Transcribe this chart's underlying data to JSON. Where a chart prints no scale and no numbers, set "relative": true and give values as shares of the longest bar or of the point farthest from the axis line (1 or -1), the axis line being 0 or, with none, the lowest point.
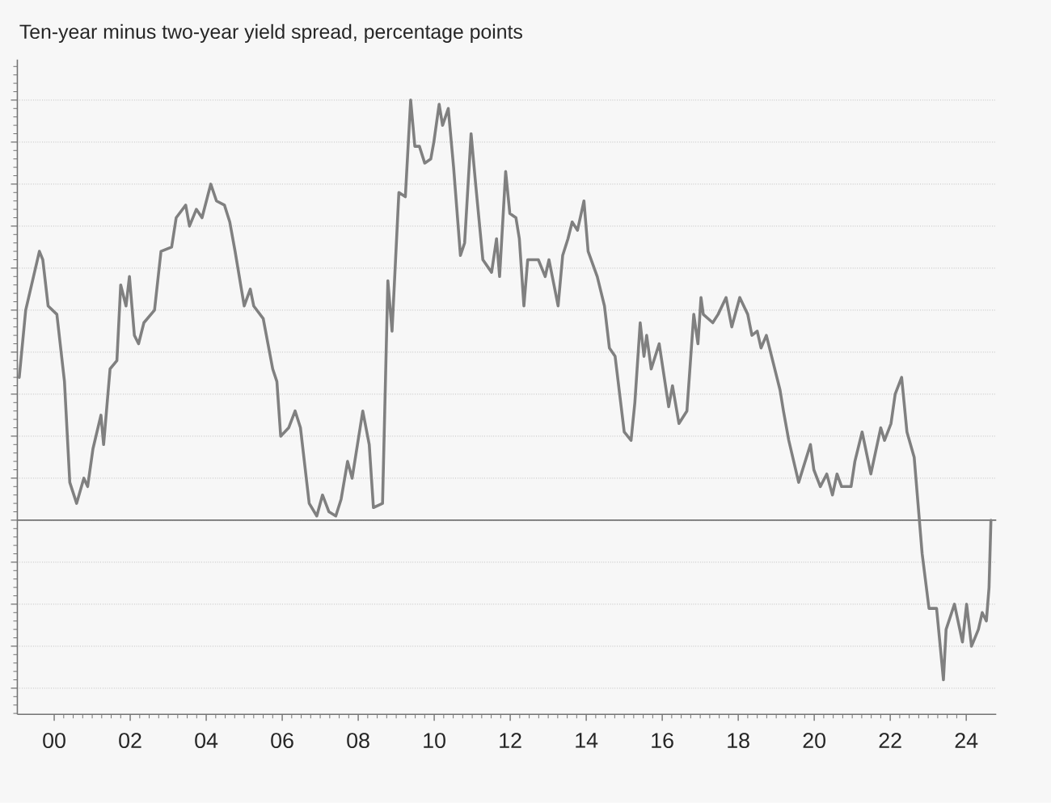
{
  "chart_data": {
    "type": "line",
    "subtitle": "Ten-year minus two-year yield spread, percentage points",
    "relative": true,
    "grid": "y",
    "tick_labels": "x",
    "xlim": [
      1999.03,
      2024.79
    ],
    "xticks": [
      {
        "value": 2000,
        "label": "00"
      },
      {
        "value": 2002,
        "label": "02"
      },
      {
        "value": 2004,
        "label": "04"
      },
      {
        "value": 2006,
        "label": "06"
      },
      {
        "value": 2008,
        "label": "08"
      },
      {
        "value": 2010,
        "label": "10"
      },
      {
        "value": 2012,
        "label": "12"
      },
      {
        "value": 2014,
        "label": "14"
      },
      {
        "value": 2016,
        "label": "16"
      },
      {
        "value": 2018,
        "label": "18"
      },
      {
        "value": 2020,
        "label": "20"
      },
      {
        "value": 2022,
        "label": "22"
      },
      {
        "value": 2024,
        "label": "24"
      }
    ],
    "series": [
      {
        "color": "#808080",
        "x": [
          1999.08,
          1999.25,
          1999.61,
          1999.7,
          1999.84,
          2000.07,
          2000.27,
          2000.41,
          2000.59,
          2000.78,
          2000.88,
          2001.02,
          2001.23,
          2001.3,
          2001.47,
          2001.65,
          2001.75,
          2001.89,
          2001.98,
          2002.11,
          2002.22,
          2002.36,
          2002.64,
          2002.81,
          2003.09,
          2003.21,
          2003.46,
          2003.56,
          2003.74,
          2003.89,
          2004.12,
          2004.27,
          2004.48,
          2004.62,
          2004.76,
          2005.0,
          2005.16,
          2005.25,
          2005.5,
          2005.75,
          2005.86,
          2005.96,
          2006.17,
          2006.34,
          2006.48,
          2006.71,
          2006.91,
          2007.06,
          2007.23,
          2007.41,
          2007.55,
          2007.72,
          2007.84,
          2008.12,
          2008.29,
          2008.4,
          2008.64,
          2008.78,
          2008.89,
          2009.07,
          2009.24,
          2009.38,
          2009.49,
          2009.61,
          2009.75,
          2009.91,
          2009.99,
          2010.13,
          2010.22,
          2010.37,
          2010.51,
          2010.69,
          2010.8,
          2010.97,
          2011.09,
          2011.28,
          2011.51,
          2011.64,
          2011.72,
          2011.88,
          2011.99,
          2012.15,
          2012.24,
          2012.36,
          2012.46,
          2012.74,
          2012.92,
          2013.02,
          2013.26,
          2013.38,
          2013.52,
          2013.63,
          2013.77,
          2013.94,
          2014.05,
          2014.29,
          2014.48,
          2014.61,
          2014.76,
          2015.0,
          2015.18,
          2015.28,
          2015.42,
          2015.52,
          2015.59,
          2015.71,
          2015.92,
          2016.17,
          2016.27,
          2016.44,
          2016.65,
          2016.83,
          2016.94,
          2017.02,
          2017.08,
          2017.33,
          2017.47,
          2017.68,
          2017.83,
          2018.04,
          2018.25,
          2018.36,
          2018.5,
          2018.6,
          2018.74,
          2019.1,
          2019.19,
          2019.33,
          2019.59,
          2019.9,
          2019.99,
          2020.16,
          2020.33,
          2020.48,
          2020.6,
          2020.72,
          2020.97,
          2021.07,
          2021.26,
          2021.49,
          2021.75,
          2021.85,
          2022.02,
          2022.13,
          2022.3,
          2022.44,
          2022.63,
          2022.84,
          2023.02,
          2023.22,
          2023.4,
          2023.47,
          2023.69,
          2023.9,
          2024.01,
          2024.14,
          2024.32,
          2024.42,
          2024.53,
          2024.6,
          2024.65
        ],
        "values": [
          0.34,
          0.5,
          0.64,
          0.62,
          0.51,
          0.49,
          0.33,
          0.09,
          0.04,
          0.1,
          0.08,
          0.17,
          0.25,
          0.18,
          0.36,
          0.38,
          0.56,
          0.51,
          0.58,
          0.44,
          0.42,
          0.47,
          0.5,
          0.64,
          0.65,
          0.72,
          0.75,
          0.7,
          0.74,
          0.72,
          0.8,
          0.76,
          0.75,
          0.71,
          0.64,
          0.51,
          0.55,
          0.51,
          0.48,
          0.36,
          0.33,
          0.2,
          0.22,
          0.26,
          0.22,
          0.04,
          0.01,
          0.06,
          0.02,
          0.01,
          0.05,
          0.14,
          0.1,
          0.26,
          0.18,
          0.03,
          0.04,
          0.57,
          0.45,
          0.78,
          0.77,
          1.0,
          0.89,
          0.89,
          0.85,
          0.86,
          0.9,
          0.99,
          0.94,
          0.98,
          0.84,
          0.63,
          0.66,
          0.92,
          0.8,
          0.62,
          0.59,
          0.67,
          0.58,
          0.83,
          0.73,
          0.72,
          0.67,
          0.51,
          0.62,
          0.62,
          0.58,
          0.62,
          0.51,
          0.63,
          0.67,
          0.71,
          0.69,
          0.76,
          0.64,
          0.58,
          0.51,
          0.41,
          0.39,
          0.21,
          0.19,
          0.28,
          0.47,
          0.39,
          0.44,
          0.36,
          0.42,
          0.27,
          0.32,
          0.23,
          0.26,
          0.49,
          0.42,
          0.53,
          0.49,
          0.47,
          0.49,
          0.53,
          0.46,
          0.53,
          0.49,
          0.44,
          0.45,
          0.41,
          0.44,
          0.31,
          0.26,
          0.19,
          0.09,
          0.18,
          0.12,
          0.08,
          0.11,
          0.06,
          0.11,
          0.08,
          0.08,
          0.14,
          0.21,
          0.11,
          0.22,
          0.19,
          0.23,
          0.3,
          0.34,
          0.21,
          0.15,
          -0.08,
          -0.21,
          -0.21,
          -0.38,
          -0.26,
          -0.2,
          -0.29,
          -0.2,
          -0.3,
          -0.26,
          -0.22,
          -0.24,
          -0.16,
          0.0
        ]
      }
    ]
  }
}
